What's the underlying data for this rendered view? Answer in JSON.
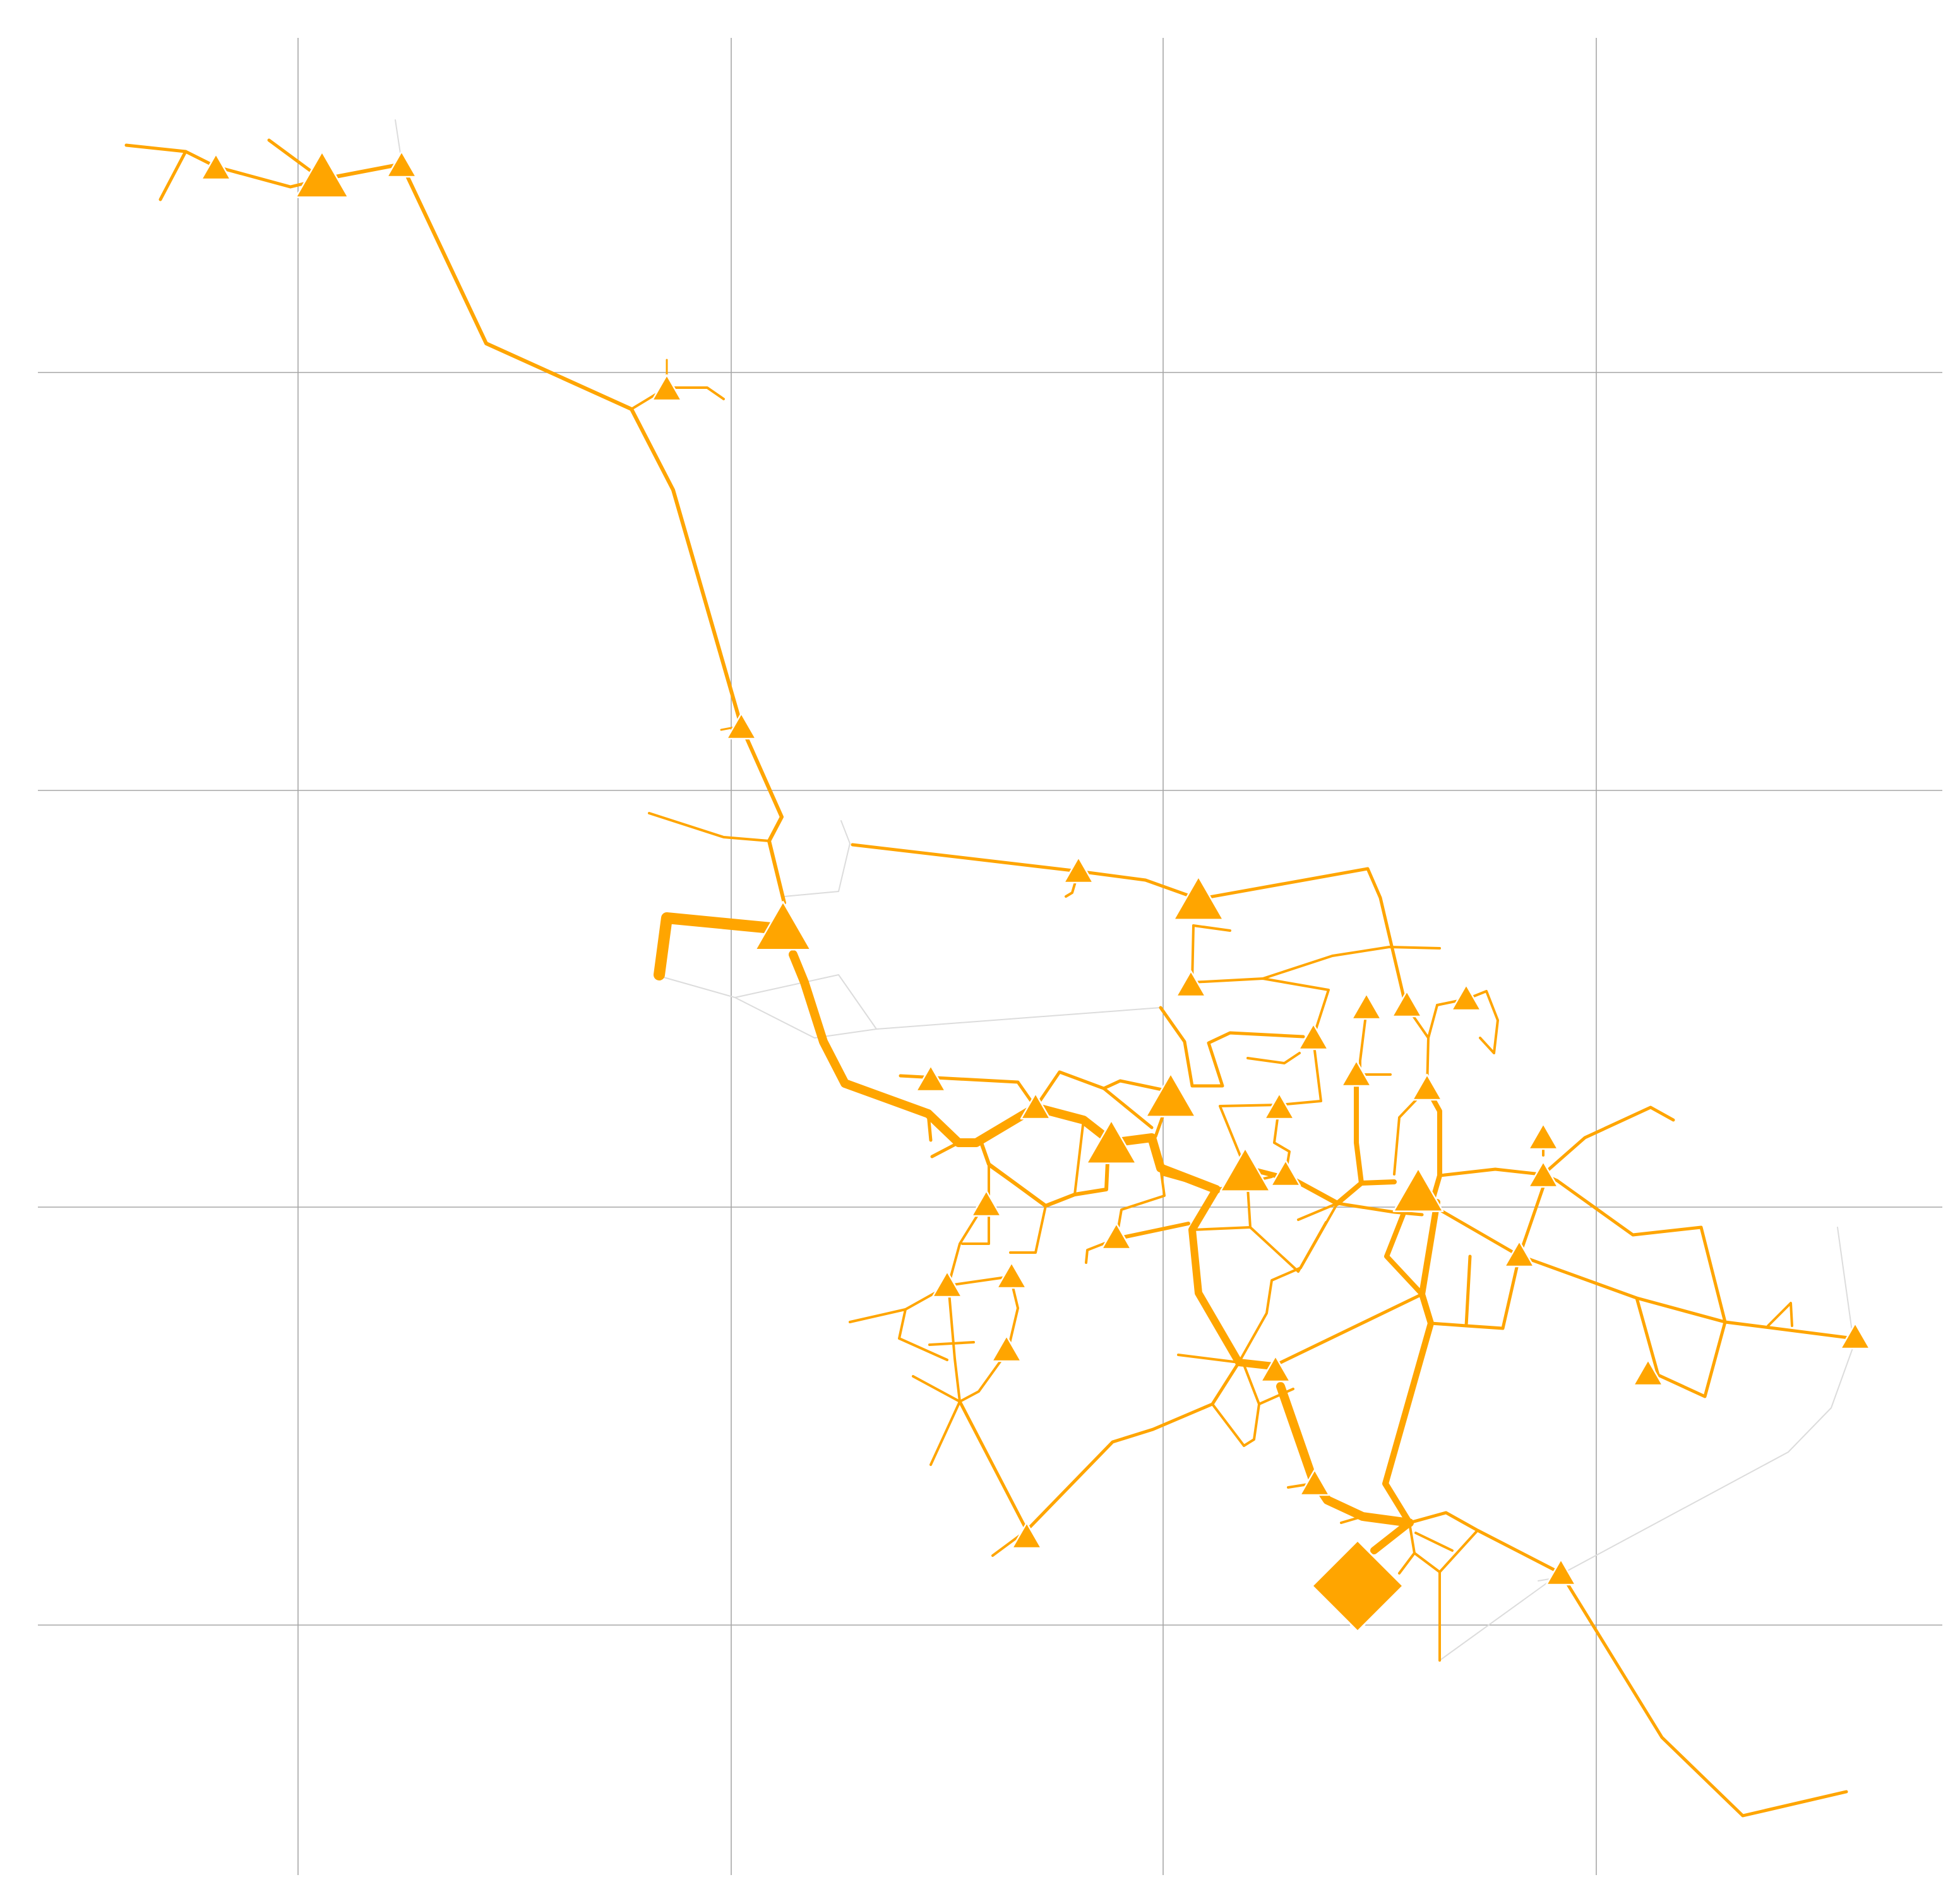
{
  "colors": {
    "background": "#ffffff",
    "grid": "#a6a6a6",
    "network": "#ffa500",
    "network_faint": "#dcdcdc",
    "marker": "#ffa500",
    "marker_outline": "#ffffff"
  },
  "map": {
    "kind": "network-map",
    "grid": true,
    "labels": [],
    "icons": {
      "node": "triangle-icon",
      "source": "diamond-icon"
    }
  }
}
